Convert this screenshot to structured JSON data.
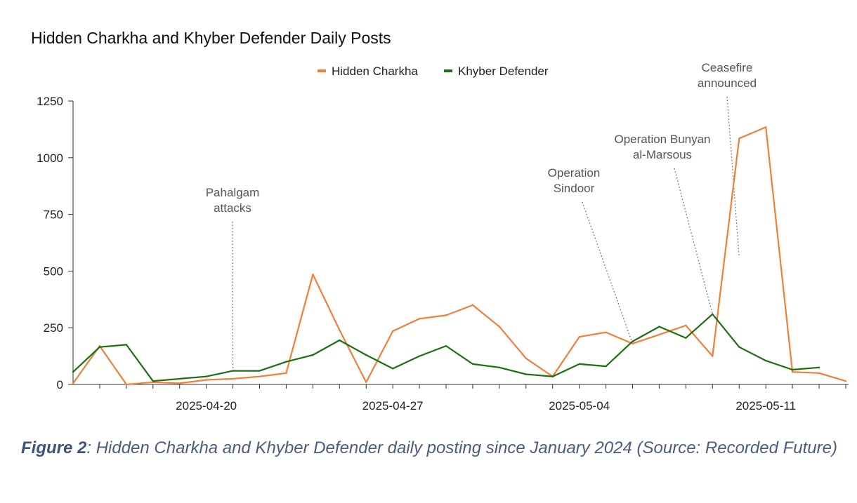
{
  "chart_data": {
    "type": "line",
    "title": "Hidden Charkha and Khyber Defender Daily Posts",
    "xlabel": "",
    "ylabel": "",
    "ylim": [
      0,
      1250
    ],
    "yticks": [
      0,
      250,
      500,
      750,
      1000,
      1250
    ],
    "ytick_labels": [
      "0",
      "250",
      "500",
      "750",
      "1000",
      "1250"
    ],
    "x_start": "2025-04-15",
    "x_days": 30,
    "xticks": [
      {
        "day": 5,
        "label": "2025-04-20"
      },
      {
        "day": 12,
        "label": "2025-04-27"
      },
      {
        "day": 19,
        "label": "2025-05-04"
      },
      {
        "day": 26,
        "label": "2025-05-11"
      }
    ],
    "legend_position": "top-center",
    "series": [
      {
        "name": "Hidden Charkha",
        "color": "#f07f3a",
        "values": [
          5,
          170,
          0,
          10,
          5,
          20,
          25,
          35,
          50,
          485,
          240,
          10,
          235,
          290,
          305,
          350,
          255,
          115,
          35,
          210,
          230,
          180,
          220,
          260,
          125,
          1085,
          1135,
          55,
          50,
          15
        ]
      },
      {
        "name": "Khyber Defender",
        "color": "#1e6e14",
        "values": [
          55,
          165,
          175,
          15,
          25,
          35,
          60,
          60,
          100,
          130,
          195,
          130,
          70,
          125,
          170,
          90,
          75,
          45,
          35,
          90,
          80,
          190,
          255,
          205,
          310,
          165,
          105,
          65,
          75,
          null
        ]
      }
    ],
    "annotations": [
      {
        "lines": [
          "Pahalgam",
          "attacks"
        ],
        "day": 6,
        "value": 60
      },
      {
        "lines": [
          "Operation",
          "Sindoor"
        ],
        "day": 21,
        "value": 180
      },
      {
        "lines": [
          "Operation Bunyan",
          "al-Marsous"
        ],
        "day": 24,
        "value": 310
      },
      {
        "lines": [
          "Ceasefire",
          "announced"
        ],
        "day": 25,
        "value": 560
      }
    ]
  },
  "caption": {
    "figure_label": "Figure 2",
    "text": ": Hidden Charkha and Khyber Defender daily posting since January 2024 (Source: Recorded Future)"
  }
}
